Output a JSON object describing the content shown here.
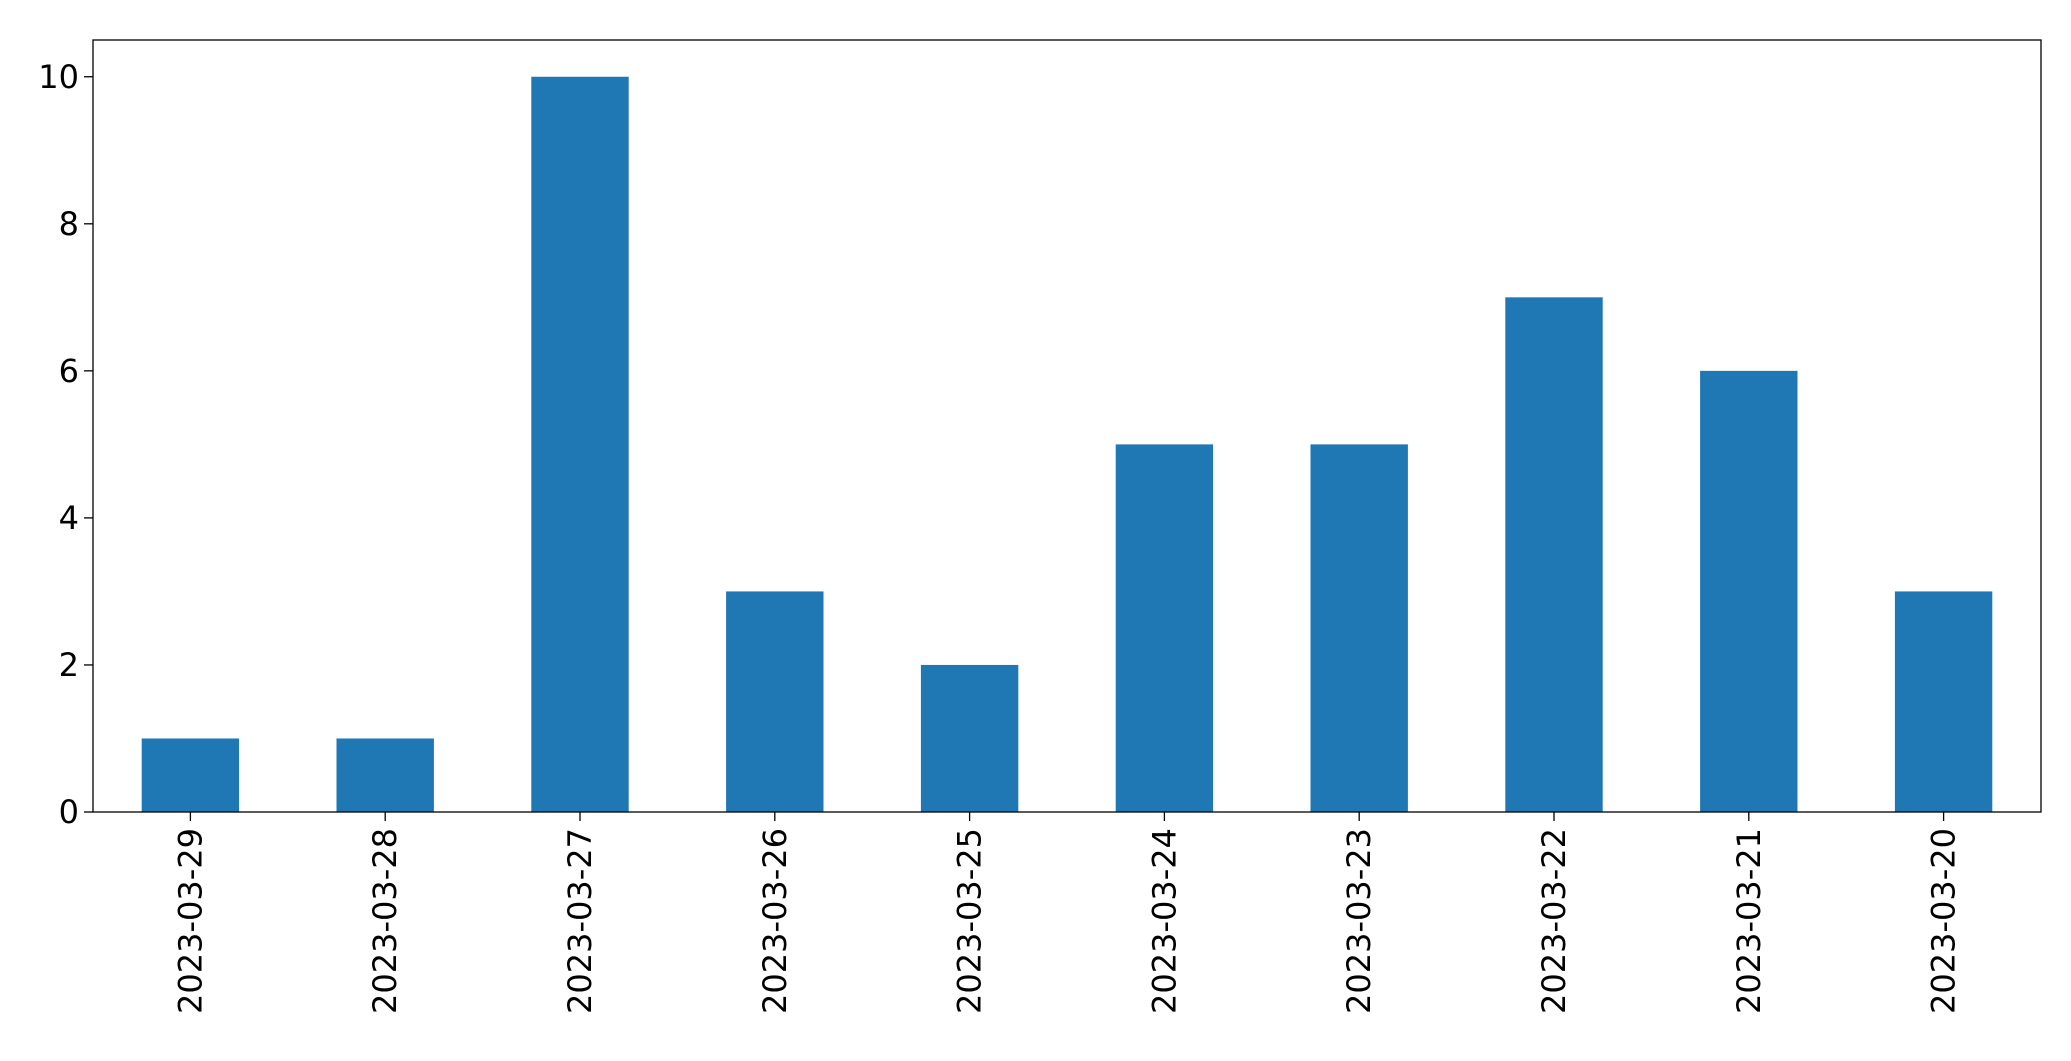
{
  "chart_data": {
    "type": "bar",
    "categories": [
      "2023-03-29",
      "2023-03-28",
      "2023-03-27",
      "2023-03-26",
      "2023-03-25",
      "2023-03-24",
      "2023-03-23",
      "2023-03-22",
      "2023-03-21",
      "2023-03-20"
    ],
    "values": [
      1,
      1,
      10,
      3,
      2,
      5,
      5,
      7,
      6,
      3
    ],
    "color": "#1f77b4",
    "ylim": [
      0,
      10.5
    ],
    "yticks": [
      0,
      2,
      4,
      6,
      8,
      10
    ],
    "grid": false
  }
}
